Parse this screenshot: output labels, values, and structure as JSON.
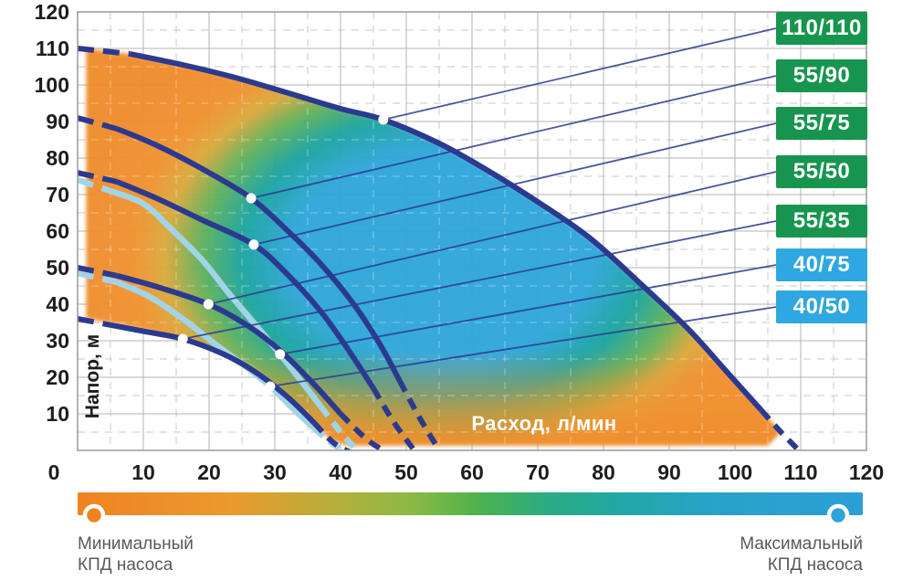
{
  "chart_data": {
    "type": "line",
    "xlabel": "Расход, л/мин",
    "ylabel": "Напор, м",
    "xlim": [
      0,
      120
    ],
    "ylim": [
      0,
      120
    ],
    "x_ticks": [
      0,
      10,
      20,
      30,
      40,
      50,
      60,
      70,
      80,
      90,
      100,
      110,
      120
    ],
    "y_ticks": [
      10,
      20,
      30,
      40,
      50,
      60,
      70,
      80,
      90,
      100,
      110,
      120
    ],
    "grid": {
      "major_step": 10,
      "minor_step": 5,
      "minor_style": "dashed"
    },
    "series": [
      {
        "name": "110/110",
        "badge": "green",
        "color": "#2b3a8f",
        "width": 6,
        "points": [
          [
            0,
            110
          ],
          [
            8,
            108.5
          ],
          [
            16,
            105.5
          ],
          [
            24,
            102
          ],
          [
            32,
            97.8
          ],
          [
            40,
            93.5
          ],
          [
            46.5,
            90.5
          ],
          [
            55,
            84
          ],
          [
            62,
            77
          ],
          [
            70,
            68
          ],
          [
            78,
            58
          ],
          [
            86,
            45
          ],
          [
            93,
            33
          ],
          [
            99,
            21
          ],
          [
            104,
            11
          ],
          [
            107,
            5
          ],
          [
            110,
            -0.5
          ]
        ],
        "marker": [
          46.5,
          90.5
        ],
        "dash_head": 1,
        "dash_tail": 2
      },
      {
        "name": "55/90",
        "badge": "green",
        "color": "#2b3a8f",
        "width": 6,
        "points": [
          [
            0,
            91
          ],
          [
            6,
            88
          ],
          [
            12,
            83.5
          ],
          [
            19,
            77
          ],
          [
            26.4,
            69
          ],
          [
            32,
            60
          ],
          [
            37,
            51
          ],
          [
            42,
            40
          ],
          [
            46,
            29
          ],
          [
            49,
            19
          ],
          [
            52,
            9
          ],
          [
            55,
            0
          ]
        ],
        "marker": [
          26.4,
          69
        ],
        "dash_head": 1,
        "dash_tail": 2
      },
      {
        "name": "55/75",
        "badge": "green",
        "color": "#2b3a8f",
        "width": 6,
        "points": [
          [
            0,
            76
          ],
          [
            6,
            73.5
          ],
          [
            12,
            69
          ],
          [
            19,
            63
          ],
          [
            26.8,
            56.3
          ],
          [
            32,
            48
          ],
          [
            37,
            38
          ],
          [
            41,
            28
          ],
          [
            45,
            17
          ],
          [
            48,
            8
          ],
          [
            51,
            0.5
          ]
        ],
        "marker": [
          26.8,
          56.3
        ],
        "dash_head": 1,
        "dash_tail": 2
      },
      {
        "name": "55/50",
        "badge": "green",
        "color": "#2b3a8f",
        "width": 6,
        "points": [
          [
            0,
            50
          ],
          [
            6,
            47.8
          ],
          [
            12,
            44.8
          ],
          [
            19.9,
            40
          ],
          [
            26,
            34
          ],
          [
            31,
            27
          ],
          [
            36,
            18
          ],
          [
            40,
            10
          ],
          [
            44,
            3
          ],
          [
            47,
            -0.5
          ]
        ],
        "marker": [
          19.9,
          40
        ],
        "dash_head": 1,
        "dash_tail": 2
      },
      {
        "name": "55/35",
        "badge": "green",
        "color": "#2b3a8f",
        "width": 6,
        "points": [
          [
            0,
            36
          ],
          [
            5,
            34.3
          ],
          [
            10,
            32.6
          ],
          [
            16,
            30.5
          ],
          [
            22,
            26.5
          ],
          [
            27,
            21.5
          ],
          [
            32,
            14.5
          ],
          [
            36,
            7.5
          ],
          [
            39,
            2
          ],
          [
            42,
            -1
          ]
        ],
        "marker": [
          16,
          30.5
        ],
        "dash_head": 1,
        "dash_tail": 2
      },
      {
        "name": "40/75",
        "badge": "blue",
        "color": "#a2d4e8",
        "width": 6.5,
        "points": [
          [
            0,
            74
          ],
          [
            5,
            71
          ],
          [
            10,
            67.5
          ],
          [
            14,
            61
          ],
          [
            19,
            52
          ],
          [
            23,
            43
          ],
          [
            27,
            34.5
          ],
          [
            30.8,
            26.3
          ],
          [
            34,
            19
          ],
          [
            37,
            12
          ],
          [
            40,
            5
          ],
          [
            42.5,
            0
          ]
        ],
        "marker": [
          30.8,
          26.3
        ],
        "dash_head": 1,
        "dash_tail": 2
      },
      {
        "name": "40/50",
        "badge": "blue",
        "color": "#a2d4e8",
        "width": 6.5,
        "points": [
          [
            0,
            48.5
          ],
          [
            6,
            46
          ],
          [
            11,
            42
          ],
          [
            16,
            36
          ],
          [
            21,
            29
          ],
          [
            25.5,
            23
          ],
          [
            29.3,
            17.5
          ],
          [
            33,
            11
          ],
          [
            36,
            6
          ],
          [
            39,
            1.5
          ],
          [
            41,
            -0.5
          ]
        ],
        "marker": [
          29.3,
          17.5
        ],
        "dash_head": 1,
        "dash_tail": 2
      }
    ],
    "region_outline": [
      [
        1.3,
        36
      ],
      [
        5,
        34.8
      ],
      [
        10,
        33
      ],
      [
        16,
        30.5
      ],
      [
        22,
        27
      ],
      [
        27,
        22
      ],
      [
        31.5,
        15
      ],
      [
        35,
        8.5
      ],
      [
        38.5,
        3
      ],
      [
        41,
        1.3
      ],
      [
        70,
        1.3
      ],
      [
        105,
        1.3
      ],
      [
        107,
        5
      ],
      [
        104,
        11
      ],
      [
        99,
        21
      ],
      [
        93,
        33
      ],
      [
        86,
        45
      ],
      [
        78,
        58
      ],
      [
        70,
        68
      ],
      [
        62,
        77
      ],
      [
        55,
        84
      ],
      [
        46.5,
        90.5
      ],
      [
        40,
        93.5
      ],
      [
        32,
        97.8
      ],
      [
        24,
        102
      ],
      [
        16,
        105.5
      ],
      [
        8,
        108.5
      ],
      [
        1.3,
        110
      ]
    ],
    "efficiency_colors": {
      "blue_core": "#2fa6d9",
      "teal": "#1ba4a0",
      "green": "#5fb15c",
      "amber": "#d9a93c",
      "orange": "#f08c2d"
    }
  },
  "badges": {
    "green": "#17954e",
    "blue": "#2fa7e0"
  },
  "legend": {
    "bar_stops": [
      [
        0,
        "#ef8322"
      ],
      [
        0.2,
        "#eb9a2c"
      ],
      [
        0.34,
        "#b0b13c"
      ],
      [
        0.43,
        "#8ab945"
      ],
      [
        0.51,
        "#4eb24e"
      ],
      [
        0.6,
        "#2aab84"
      ],
      [
        0.69,
        "#22a8a5"
      ],
      [
        0.8,
        "#28a3c8"
      ],
      [
        1,
        "#2b9fd6"
      ]
    ],
    "min_circle_color": "#ef8322",
    "max_circle_color": "#2ba4da",
    "min_label": [
      "Минимальный",
      "КПД насоса"
    ],
    "max_label": [
      "Максимальный",
      "КПД насоса"
    ]
  }
}
